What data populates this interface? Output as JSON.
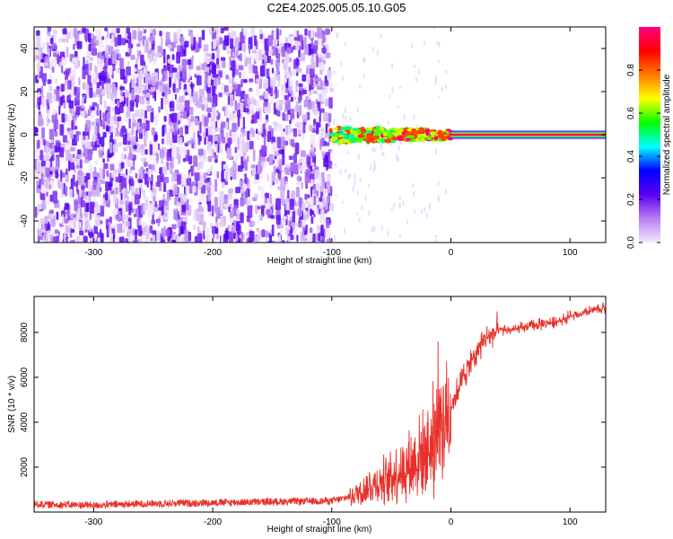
{
  "title": "C2E4.2025.005.05.10.G05",
  "chart_data": [
    {
      "type": "heatmap",
      "xlabel": "Height of straight line (km)",
      "ylabel": "Frequency (Hz)",
      "xlim": [
        -350,
        130
      ],
      "ylim": [
        -50,
        50
      ],
      "xticks": [
        -300,
        -200,
        -100,
        0,
        100
      ],
      "yticks": [
        -40,
        -20,
        0,
        20,
        40
      ],
      "colorbar": {
        "label": "Normalized spectral amplitude",
        "range": [
          0,
          1
        ],
        "ticks": [
          0.0,
          0.2,
          0.4,
          0.6,
          0.8
        ],
        "colors": [
          "#f4eafc",
          "#b87ef2",
          "#5a00f0",
          "#0000ff",
          "#00ffff",
          "#00ff00",
          "#ffff00",
          "#ff7a00",
          "#ff0000",
          "#ff0080"
        ]
      },
      "regions": [
        {
          "x": [
            -350,
            -102
          ],
          "freq": [
            -50,
            50
          ],
          "amplitude": "low, noise-like scatter"
        },
        {
          "x": [
            -102,
            0
          ],
          "freq": [
            -4,
            4
          ],
          "amplitude": "0.3-0.9 fragmented tone"
        },
        {
          "x": [
            0,
            130
          ],
          "freq": [
            -2,
            2
          ],
          "amplitude": "about 0.95 steady tone at 0 Hz"
        }
      ]
    },
    {
      "type": "line",
      "xlabel": "Height of straight line (km)",
      "ylabel": "SNR (10 * v/v)",
      "xlim": [
        -350,
        130
      ],
      "ylim": [
        0,
        9600
      ],
      "xticks": [
        -300,
        -200,
        -100,
        0,
        100
      ],
      "yticks": [
        2000,
        4000,
        6000,
        8000
      ],
      "color": "#e8302a",
      "x": [
        -350,
        -300,
        -250,
        -200,
        -150,
        -100,
        -90,
        -80,
        -70,
        -60,
        -50,
        -40,
        -30,
        -20,
        -10,
        0,
        10,
        20,
        30,
        40,
        50,
        60,
        70,
        80,
        90,
        100,
        110,
        120,
        130
      ],
      "y": [
        350,
        300,
        380,
        420,
        460,
        500,
        600,
        800,
        1100,
        1300,
        1600,
        1900,
        2300,
        2800,
        3600,
        4700,
        6000,
        7000,
        7800,
        8100,
        8100,
        8200,
        8300,
        8400,
        8500,
        8700,
        8800,
        9000,
        9100
      ]
    }
  ]
}
